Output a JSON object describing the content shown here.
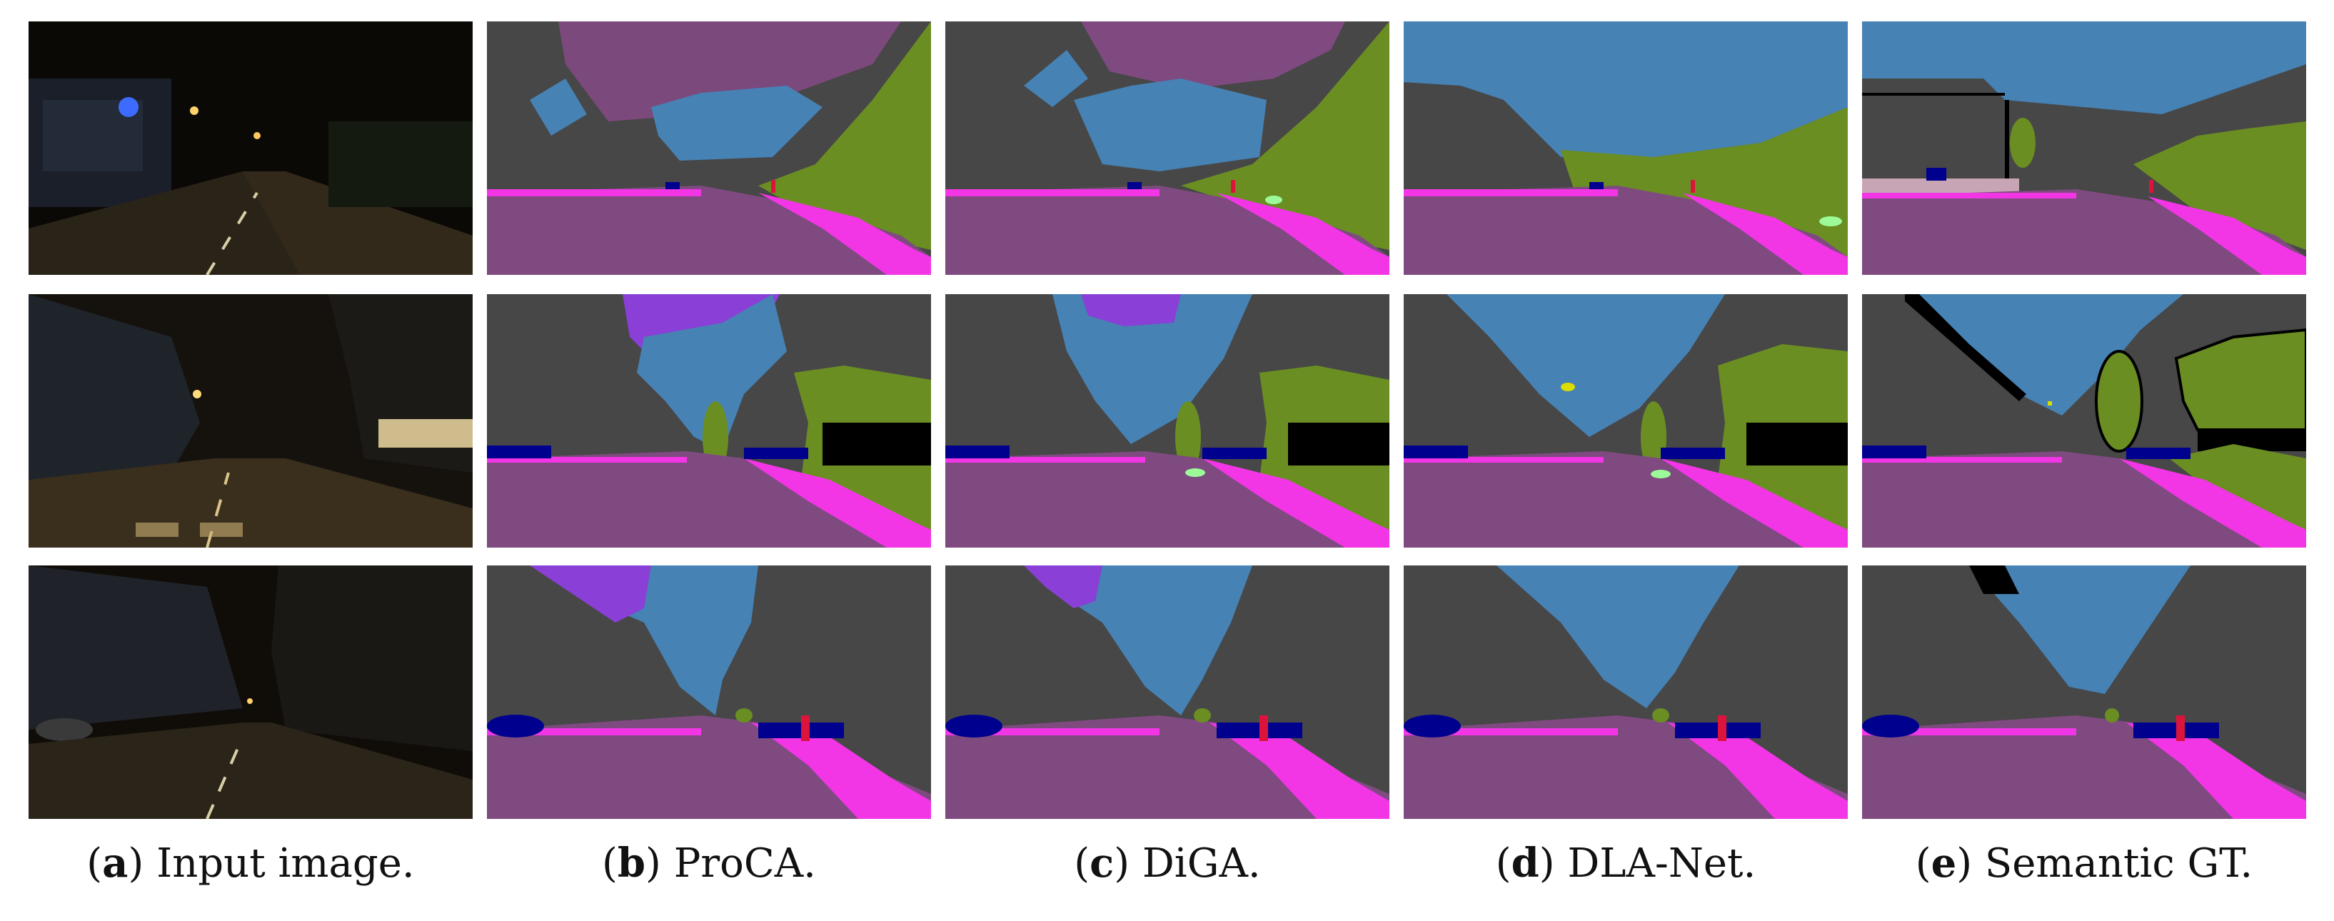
{
  "figure": {
    "captions": [
      {
        "letter": "a",
        "text": "Input image."
      },
      {
        "letter": "b",
        "text": "ProCA."
      },
      {
        "letter": "c",
        "text": "DiGA."
      },
      {
        "letter": "d",
        "text": "DLA-Net."
      },
      {
        "letter": "e",
        "text": "Semantic GT."
      }
    ]
  },
  "colors": {
    "road": "#7f4a80",
    "sidewalk": "#f236e6",
    "building": "#474747",
    "vegetation": "#6b8e23",
    "sky": "#4682b4",
    "terrain": "#9cfb98",
    "car": "#00008e",
    "person": "#dc143c",
    "wall": "#6a6a9c",
    "fence_like_purple": "#8a3fd6",
    "sign": "#dcdc00",
    "pole": "#999999",
    "void": "#000000"
  }
}
